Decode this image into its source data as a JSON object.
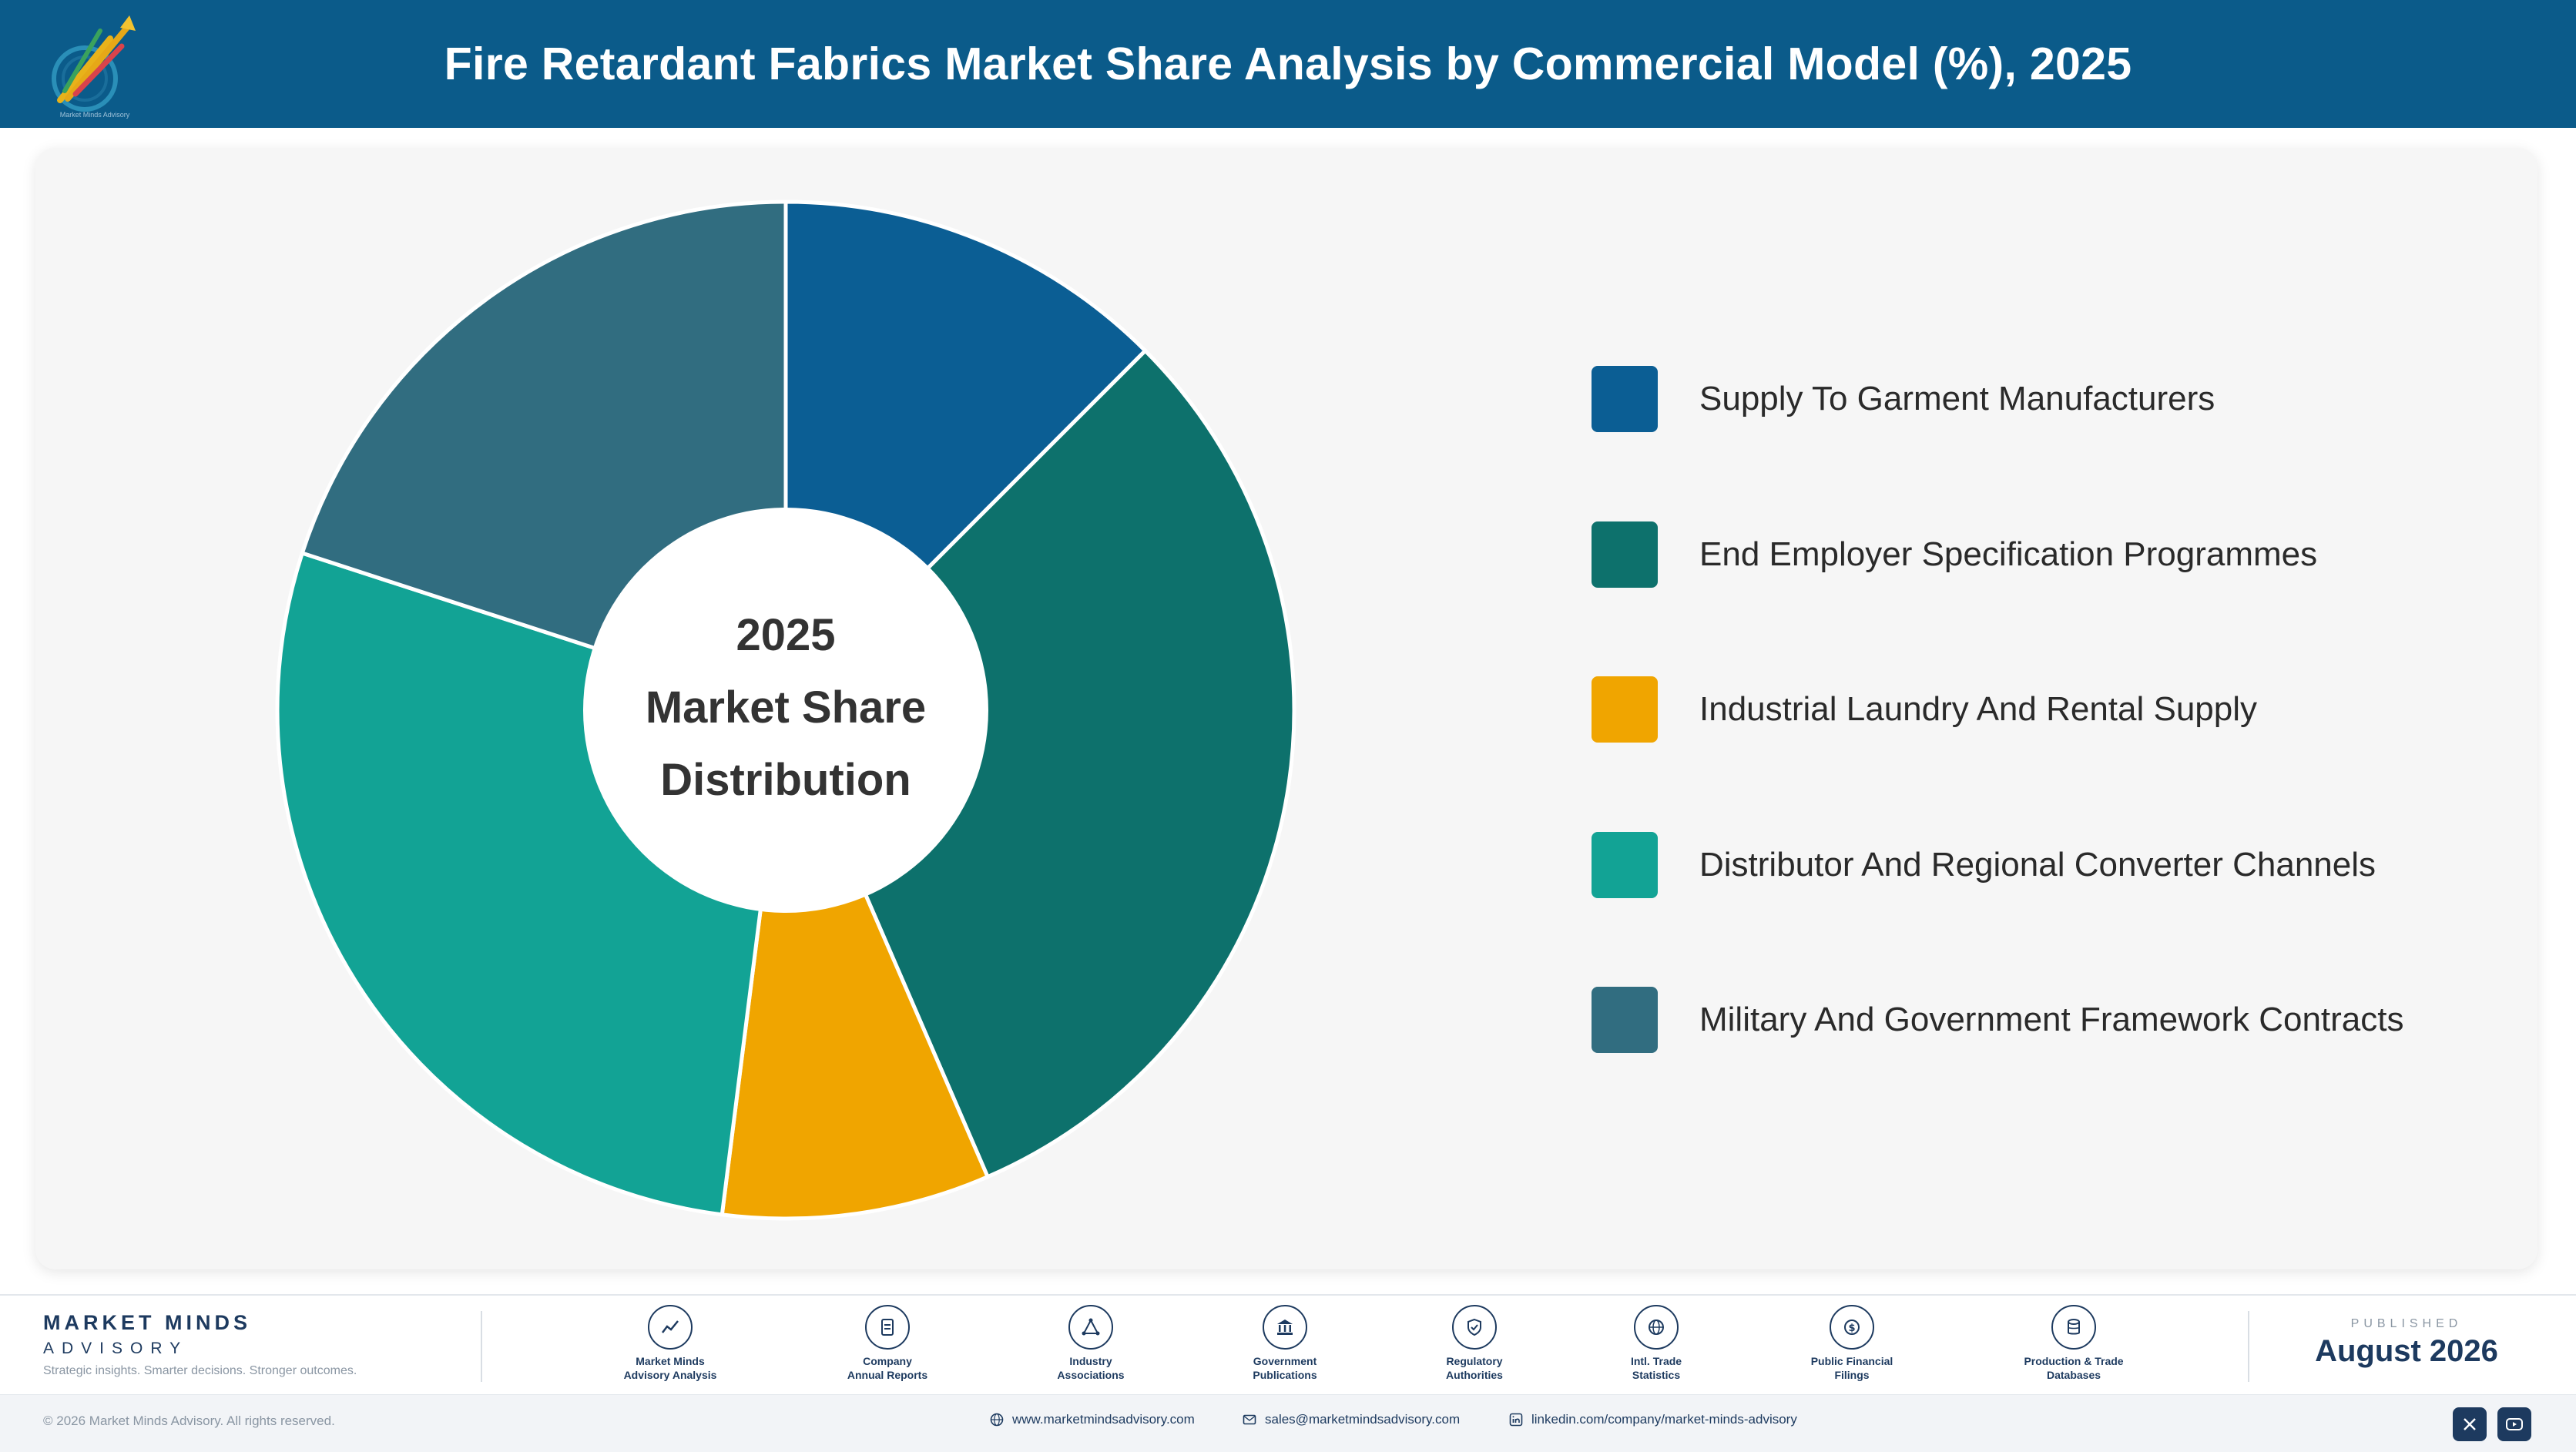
{
  "header": {
    "title": "Fire Retardant Fabrics Market Share Analysis by Commercial Model (%), 2025",
    "logo_caption": "Market Minds Advisory"
  },
  "chart_data": {
    "type": "pie",
    "title": "Fire Retardant Fabrics Market Share Analysis by Commercial Model (%), 2025",
    "center_label": [
      "2025",
      "Market Share",
      "Distribution"
    ],
    "categories": [
      "Supply To Garment Manufacturers",
      "End Employer Specification Programmes",
      "Industrial Laundry And Rental Supply",
      "Distributor And Regional Converter Channels",
      "Military And Government Framework Contracts"
    ],
    "values": [
      12.5,
      31.0,
      8.5,
      28.0,
      20.0
    ],
    "colors": [
      "#0b5e94",
      "#0d716c",
      "#f0a500",
      "#12a395",
      "#316d80"
    ],
    "legend_position": "right",
    "donut": true
  },
  "footer": {
    "brand_name": "MARKET MINDS",
    "brand_sub": "ADVISORY",
    "tagline": "Strategic insights. Smarter decisions. Stronger outcomes.",
    "sources": [
      {
        "line1": "Market Minds",
        "line2": "Advisory Analysis",
        "icon": "trend-line-icon"
      },
      {
        "line1": "Company",
        "line2": "Annual Reports",
        "icon": "document-icon"
      },
      {
        "line1": "Industry",
        "line2": "Associations",
        "icon": "network-icon"
      },
      {
        "line1": "Government",
        "line2": "Publications",
        "icon": "building-icon"
      },
      {
        "line1": "Regulatory",
        "line2": "Authorities",
        "icon": "shield-icon"
      },
      {
        "line1": "Intl. Trade",
        "line2": "Statistics",
        "icon": "globe-icon"
      },
      {
        "line1": "Public Financial",
        "line2": "Filings",
        "icon": "dollar-icon"
      },
      {
        "line1": "Production & Trade",
        "line2": "Databases",
        "icon": "database-icon"
      }
    ],
    "published_label": "PUBLISHED",
    "published_date": "August 2026",
    "copyright": "© 2026 Market Minds Advisory. All rights reserved.",
    "website": "www.marketmindsadvisory.com",
    "email": "sales@marketmindsadvisory.com",
    "linkedin": "linkedin.com/company/market-minds-advisory"
  }
}
